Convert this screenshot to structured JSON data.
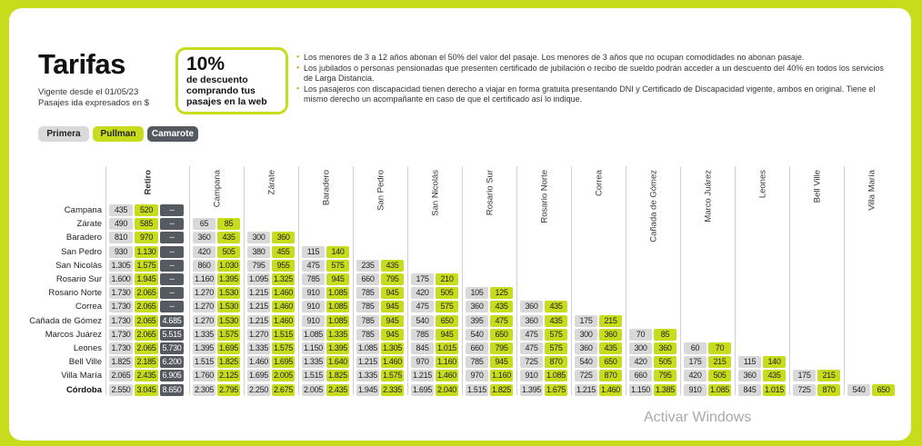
{
  "header": {
    "title": "Tarifas",
    "vigente": "Vigente desde el 01/05/23",
    "pasajes": "Pasajes ida expresados en $"
  },
  "promo": {
    "percent": "10%",
    "line1": "de descuento",
    "line2": "comprando tus",
    "line3": "pasajes en la web"
  },
  "notes": [
    "Los menores de 3 a 12 años abonan el 50% del valor del pasaje. Los menores de 3 años que no ocupan comodidades no abonan pasaje.",
    "Los jubilados o personas pensionadas que presenten certificado de jubilación o recibo de sueldo podrán acceder a un descuento del 40% en todos los servicios de Larga Distancia.",
    "Los pasajeros con discapacidad tienen derecho a viajar en forma gratuita presentando DNI y Certificado de Discapacidad vigente, ambos en original. Tiene el mismo derecho un acompañante en caso de que el certificado así lo indique."
  ],
  "legend": {
    "primera": "Primera",
    "pullman": "Pullman",
    "camarote": "Camarote"
  },
  "colors": {
    "background": "#c8dc1e",
    "primera": "#d9d9d9",
    "pullman": "#c8dc1e",
    "camarote": "#555960"
  },
  "columns": [
    "Retiro",
    "Campana",
    "Zárate",
    "Baradero",
    "San Pedro",
    "San Nicolás",
    "Rosario Sur",
    "Rosario Norte",
    "Correa",
    "Cañada de Gómez",
    "Marco Juárez",
    "Leones",
    "Bell Ville",
    "Villa María"
  ],
  "rows": [
    {
      "name": "Campana",
      "bold": false,
      "fares": [
        [
          "435",
          "520",
          "--"
        ]
      ]
    },
    {
      "name": "Zárate",
      "bold": false,
      "fares": [
        [
          "490",
          "585",
          "--"
        ],
        [
          "65",
          "85"
        ]
      ]
    },
    {
      "name": "Baradero",
      "bold": false,
      "fares": [
        [
          "810",
          "970",
          "--"
        ],
        [
          "360",
          "435"
        ],
        [
          "300",
          "360"
        ]
      ]
    },
    {
      "name": "San Pedro",
      "bold": false,
      "fares": [
        [
          "930",
          "1.130",
          "--"
        ],
        [
          "420",
          "505"
        ],
        [
          "380",
          "455"
        ],
        [
          "115",
          "140"
        ]
      ]
    },
    {
      "name": "San Nicolás",
      "bold": false,
      "fares": [
        [
          "1.305",
          "1.575",
          "--"
        ],
        [
          "860",
          "1.030"
        ],
        [
          "795",
          "955"
        ],
        [
          "475",
          "575"
        ],
        [
          "235",
          "435"
        ]
      ]
    },
    {
      "name": "Rosario Sur",
      "bold": false,
      "fares": [
        [
          "1.600",
          "1.945",
          "--"
        ],
        [
          "1.160",
          "1.395"
        ],
        [
          "1.095",
          "1.325"
        ],
        [
          "785",
          "945"
        ],
        [
          "660",
          "795"
        ],
        [
          "175",
          "210"
        ]
      ]
    },
    {
      "name": "Rosario Norte",
      "bold": false,
      "fares": [
        [
          "1.730",
          "2.065",
          "--"
        ],
        [
          "1.270",
          "1.530"
        ],
        [
          "1.215",
          "1.460"
        ],
        [
          "910",
          "1.085"
        ],
        [
          "785",
          "945"
        ],
        [
          "420",
          "505"
        ],
        [
          "105",
          "125"
        ]
      ]
    },
    {
      "name": "Correa",
      "bold": false,
      "fares": [
        [
          "1.730",
          "2.065",
          "--"
        ],
        [
          "1.270",
          "1.530"
        ],
        [
          "1.215",
          "1.460"
        ],
        [
          "910",
          "1.085"
        ],
        [
          "785",
          "945"
        ],
        [
          "475",
          "575"
        ],
        [
          "360",
          "435"
        ],
        [
          "360",
          "435"
        ]
      ]
    },
    {
      "name": "Cañada de Gómez",
      "bold": false,
      "fares": [
        [
          "1.730",
          "2.065",
          "4.685"
        ],
        [
          "1.270",
          "1.530"
        ],
        [
          "1.215",
          "1.460"
        ],
        [
          "910",
          "1.085"
        ],
        [
          "785",
          "945"
        ],
        [
          "540",
          "650"
        ],
        [
          "395",
          "475"
        ],
        [
          "360",
          "435"
        ],
        [
          "175",
          "215"
        ]
      ]
    },
    {
      "name": "Marcos Juárez",
      "bold": false,
      "fares": [
        [
          "1.730",
          "2.065",
          "5.515"
        ],
        [
          "1.335",
          "1.575"
        ],
        [
          "1.270",
          "1.515"
        ],
        [
          "1.085",
          "1.335"
        ],
        [
          "785",
          "945"
        ],
        [
          "785",
          "945"
        ],
        [
          "540",
          "650"
        ],
        [
          "475",
          "575"
        ],
        [
          "300",
          "360"
        ],
        [
          "70",
          "85"
        ]
      ]
    },
    {
      "name": "Leones",
      "bold": false,
      "fares": [
        [
          "1.730",
          "2.065",
          "5.730"
        ],
        [
          "1.395",
          "1.695"
        ],
        [
          "1.335",
          "1.575"
        ],
        [
          "1.150",
          "1.395"
        ],
        [
          "1.085",
          "1.305"
        ],
        [
          "845",
          "1.015"
        ],
        [
          "660",
          "795"
        ],
        [
          "475",
          "575"
        ],
        [
          "360",
          "435"
        ],
        [
          "300",
          "360"
        ],
        [
          "60",
          "70"
        ]
      ]
    },
    {
      "name": "Bell Ville",
      "bold": false,
      "fares": [
        [
          "1.825",
          "2.185",
          "6.200"
        ],
        [
          "1.515",
          "1.825"
        ],
        [
          "1.460",
          "1.695"
        ],
        [
          "1.335",
          "1.640"
        ],
        [
          "1.215",
          "1.460"
        ],
        [
          "970",
          "1.160"
        ],
        [
          "785",
          "945"
        ],
        [
          "725",
          "870"
        ],
        [
          "540",
          "650"
        ],
        [
          "420",
          "505"
        ],
        [
          "175",
          "215"
        ],
        [
          "115",
          "140"
        ]
      ]
    },
    {
      "name": "Villa María",
      "bold": false,
      "fares": [
        [
          "2.065",
          "2.435",
          "6.905"
        ],
        [
          "1.760",
          "2.125"
        ],
        [
          "1.695",
          "2.005"
        ],
        [
          "1.515",
          "1.825"
        ],
        [
          "1.335",
          "1.575"
        ],
        [
          "1.215",
          "1.460"
        ],
        [
          "970",
          "1.160"
        ],
        [
          "910",
          "1.085"
        ],
        [
          "725",
          "870"
        ],
        [
          "660",
          "795"
        ],
        [
          "420",
          "505"
        ],
        [
          "360",
          "435"
        ],
        [
          "175",
          "215"
        ]
      ]
    },
    {
      "name": "Córdoba",
      "bold": true,
      "fares": [
        [
          "2.550",
          "3.045",
          "8.650"
        ],
        [
          "2.305",
          "2.795"
        ],
        [
          "2.250",
          "2.675"
        ],
        [
          "2.005",
          "2.435"
        ],
        [
          "1.945",
          "2.335"
        ],
        [
          "1.695",
          "2.040"
        ],
        [
          "1.515",
          "1.825"
        ],
        [
          "1.395",
          "1.675"
        ],
        [
          "1.215",
          "1.460"
        ],
        [
          "1.150",
          "1.385"
        ],
        [
          "910",
          "1.085"
        ],
        [
          "845",
          "1.015"
        ],
        [
          "725",
          "870"
        ],
        [
          "540",
          "650"
        ]
      ]
    }
  ],
  "watermark": "Activar Windows"
}
